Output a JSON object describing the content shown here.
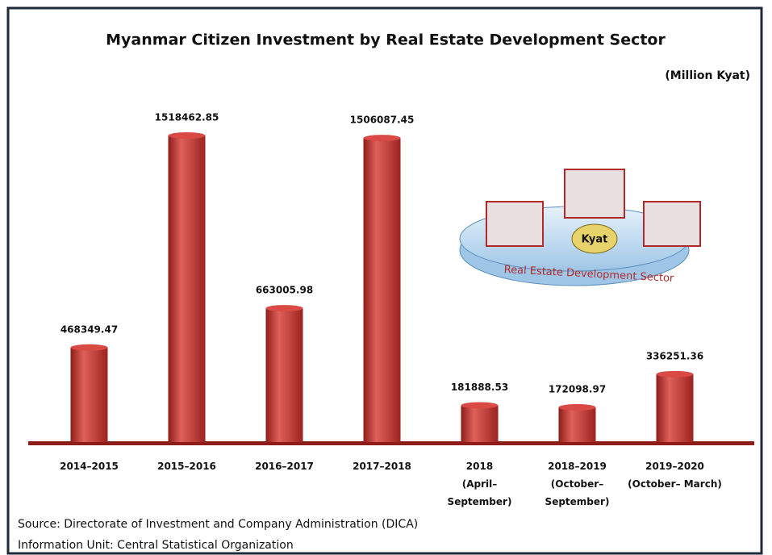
{
  "chart_data": {
    "type": "bar",
    "title": "Myanmar Citizen Investment by Real Estate Development Sector",
    "unit": "(Million Kyat)",
    "categories": [
      "2014–2015",
      "2015–2016",
      "2016–2017",
      "2017–2018",
      "2018\n(April–\nSeptember)",
      "2018–2019\n(October–\nSeptember)",
      "2019–2020\n(October– March)"
    ],
    "values": [
      468349.47,
      1518462.85,
      663005.98,
      1506087.45,
      181888.53,
      172098.97,
      336251.36
    ],
    "color": "#c9302c",
    "illustration_label": "Real Estate Development Sector",
    "illustration_bag_label": "Kyat",
    "source": "Source:  Directorate of Investment and Company Administration (DICA)",
    "note": "Information Unit:  Central Statistical Organization"
  }
}
